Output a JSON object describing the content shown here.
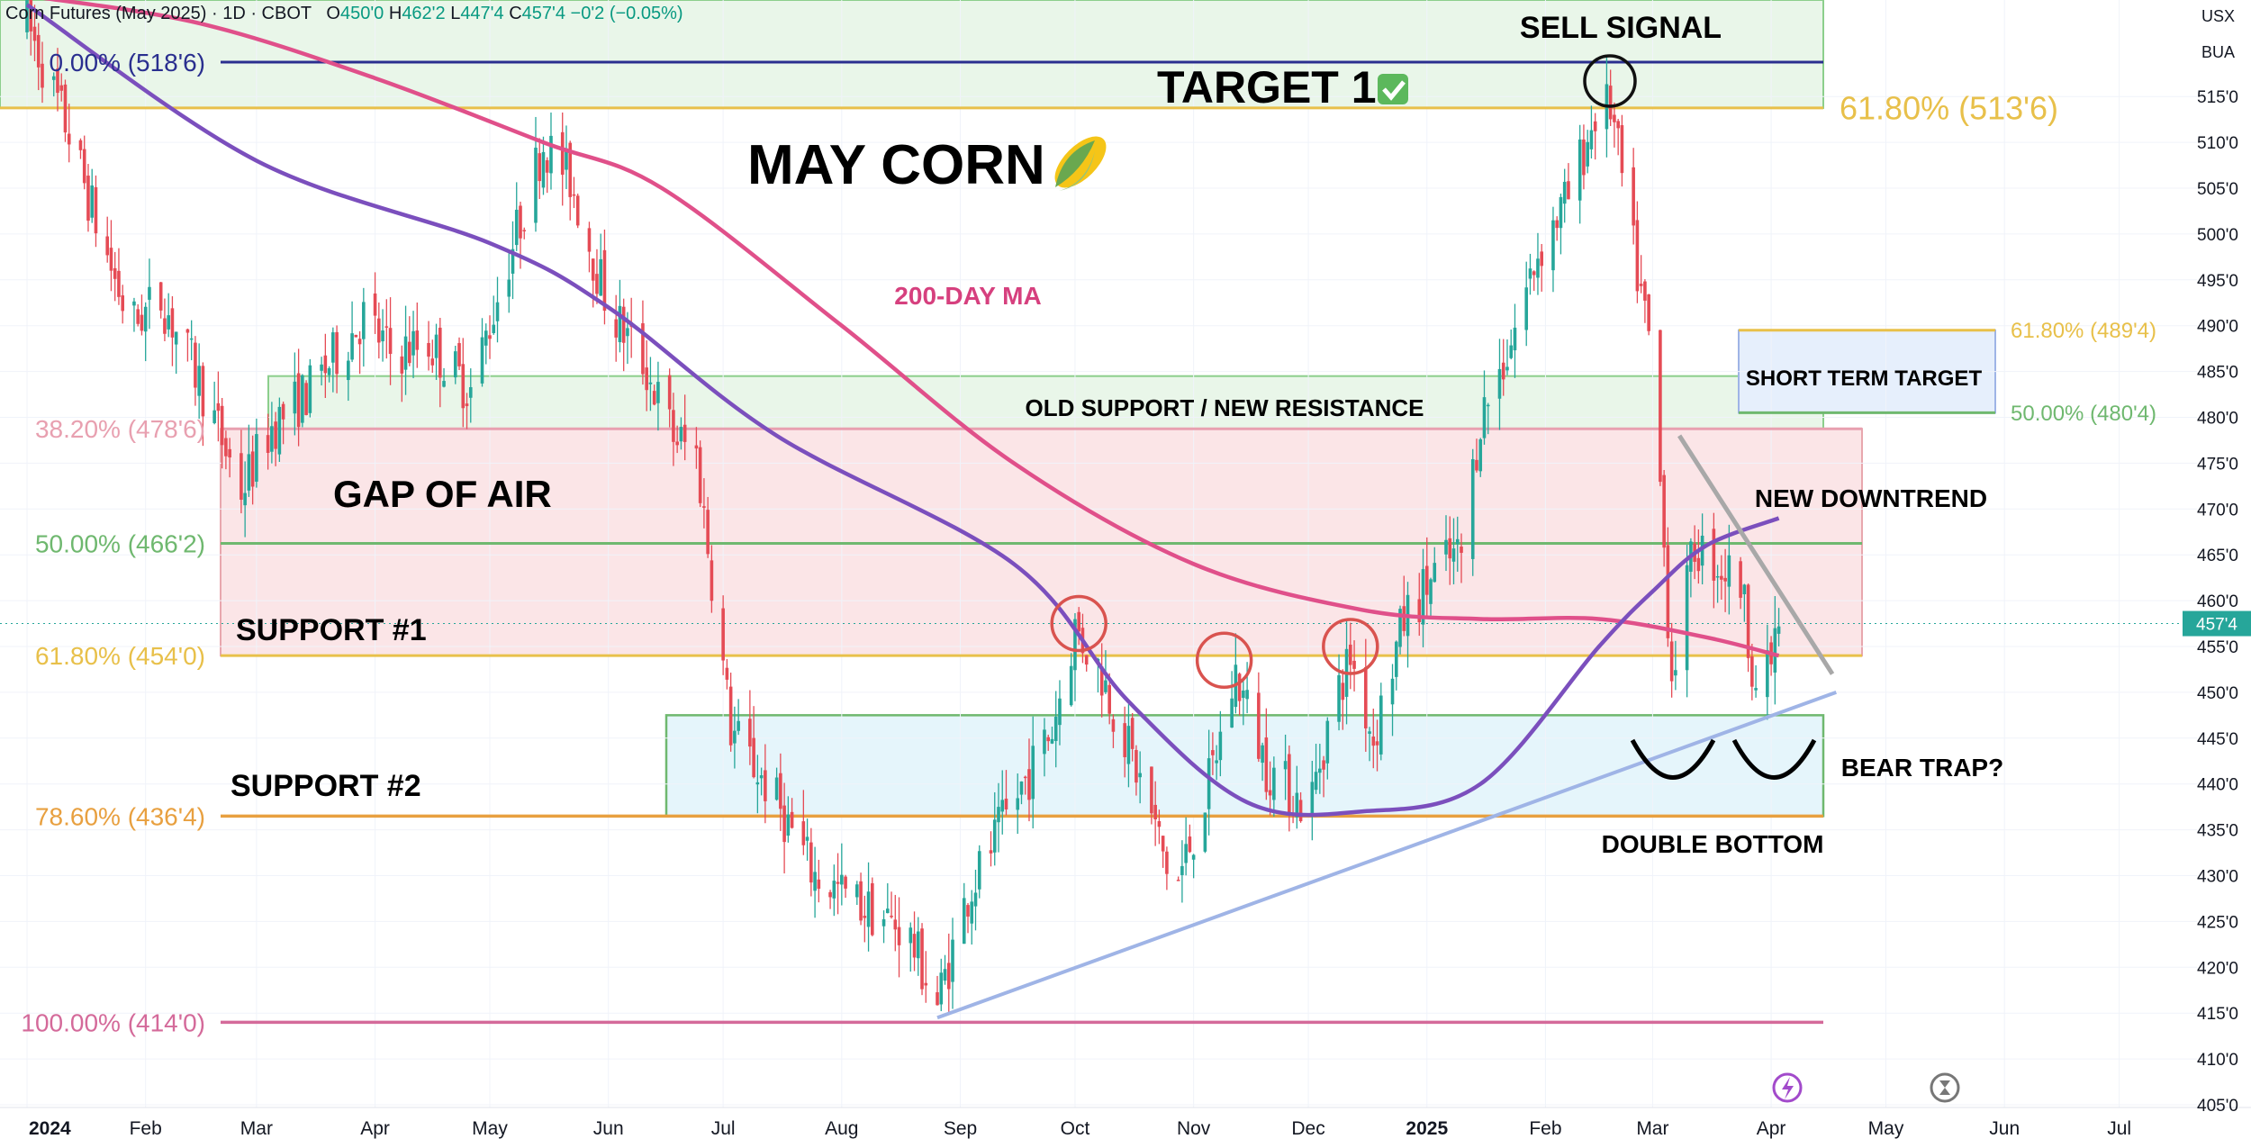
{
  "header": {
    "symbol": "Corn Futures (May 2025) · 1D · CBOT",
    "open_label": "O",
    "open": "450'0",
    "high_label": "H",
    "high": "462'2",
    "low_label": "L",
    "low": "447'4",
    "close_label": "C",
    "close": "457'4",
    "change": "−0'2 (−0.05%)"
  },
  "corner": {
    "currency": "USX",
    "unit": "BUA"
  },
  "colors": {
    "up": "#26a69a",
    "down": "#e54b55",
    "ma200": "#e0508a",
    "ma_short": "#7b4fbd",
    "trendline": "#9fb4e6",
    "price_badge": "#26a69a"
  },
  "annotations": {
    "title": "MAY CORN",
    "title_icon": "corn-emoji",
    "target1": "TARGET 1",
    "target1_icon": "check-mark-icon",
    "sell_signal": "SELL SIGNAL",
    "ma_label": "200-DAY MA",
    "old_support": "OLD SUPPORT / NEW RESISTANCE",
    "gap": "GAP OF AIR",
    "support1": "SUPPORT #1",
    "support2": "SUPPORT #2",
    "short_term_target": "SHORT TERM TARGET",
    "new_downtrend": "NEW DOWNTREND",
    "bear_trap": "BEAR TRAP?",
    "double_bottom": "DOUBLE BOTTOM"
  },
  "fib_levels_left": [
    {
      "label": "0.00% (518'6)",
      "price": 518.75,
      "color": "#2a2f8f"
    },
    {
      "label": "38.20% (478'6)",
      "price": 478.75,
      "color": "#e8a0b0"
    },
    {
      "label": "50.00% (466'2)",
      "price": 466.25,
      "color": "#6fb86f"
    },
    {
      "label": "61.80% (454'0)",
      "price": 454.0,
      "color": "#e8c04a"
    },
    {
      "label": "78.60% (436'4)",
      "price": 436.5,
      "color": "#e8a040"
    },
    {
      "label": "100.00% (414'0)",
      "price": 414.0,
      "color": "#d46a9a"
    }
  ],
  "fib_levels_right": [
    {
      "label": "61.80% (513'6)",
      "price": 513.75,
      "color": "#e8c04a"
    },
    {
      "label": "61.80% (489'4)",
      "price": 489.5,
      "color": "#e8c04a"
    },
    {
      "label": "50.00% (480'4)",
      "price": 480.5,
      "color": "#6fb86f"
    }
  ],
  "last_price_badge": "457'4",
  "icons": [
    "lightning-icon",
    "timer-icon"
  ],
  "chart_data": {
    "type": "candlestick",
    "title": "MAY CORN",
    "x_axis_labels": [
      "2024",
      "Feb",
      "Mar",
      "Apr",
      "May",
      "Jun",
      "Jul",
      "Aug",
      "Sep",
      "Oct",
      "Nov",
      "Dec",
      "2025",
      "Feb",
      "Mar",
      "Apr",
      "May",
      "Jun",
      "Jul"
    ],
    "y_axis_labels": [
      "405'0",
      "410'0",
      "415'0",
      "420'0",
      "425'0",
      "430'0",
      "435'0",
      "440'0",
      "445'0",
      "450'0",
      "455'0",
      "460'0",
      "465'0",
      "470'0",
      "475'0",
      "480'0",
      "485'0",
      "490'0",
      "495'0",
      "500'0",
      "505'0",
      "510'0",
      "515'0"
    ],
    "y_ticks": [
      405,
      410,
      415,
      420,
      425,
      430,
      435,
      440,
      445,
      450,
      455,
      460,
      465,
      470,
      475,
      480,
      485,
      490,
      495,
      500,
      505,
      510,
      515
    ],
    "ylim": [
      405,
      526
    ],
    "x_range": [
      "2024-01-01",
      "2025-07-31"
    ],
    "x_label_dates": [
      "2024-01-01",
      "2024-02-01",
      "2024-03-01",
      "2024-04-01",
      "2024-05-01",
      "2024-06-01",
      "2024-07-01",
      "2024-08-01",
      "2024-09-01",
      "2024-10-01",
      "2024-11-01",
      "2024-12-01",
      "2025-01-01",
      "2025-02-01",
      "2025-03-01",
      "2025-04-01",
      "2025-05-01",
      "2025-06-01",
      "2025-07-01"
    ],
    "last_price": 457.5,
    "price_keypoints": [
      [
        "2024-01-01",
        523
      ],
      [
        "2024-01-12",
        511
      ],
      [
        "2024-01-20",
        500
      ],
      [
        "2024-01-28",
        490
      ],
      [
        "2024-02-05",
        493
      ],
      [
        "2024-02-15",
        484
      ],
      [
        "2024-02-26",
        472
      ],
      [
        "2024-03-05",
        479
      ],
      [
        "2024-03-15",
        483
      ],
      [
        "2024-03-29",
        491
      ],
      [
        "2024-04-05",
        487
      ],
      [
        "2024-04-15",
        488
      ],
      [
        "2024-04-26",
        483
      ],
      [
        "2024-05-05",
        496
      ],
      [
        "2024-05-15",
        510
      ],
      [
        "2024-05-22",
        506
      ],
      [
        "2024-06-01",
        492
      ],
      [
        "2024-06-10",
        486
      ],
      [
        "2024-06-18",
        478
      ],
      [
        "2024-06-24",
        476
      ],
      [
        "2024-07-03",
        446
      ],
      [
        "2024-07-15",
        438
      ],
      [
        "2024-07-25",
        430
      ],
      [
        "2024-08-05",
        427
      ],
      [
        "2024-08-18",
        424
      ],
      [
        "2024-08-26",
        416
      ],
      [
        "2024-09-03",
        428
      ],
      [
        "2024-09-15",
        438
      ],
      [
        "2024-09-25",
        446
      ],
      [
        "2024-10-01",
        457
      ],
      [
        "2024-10-08",
        452
      ],
      [
        "2024-10-20",
        438
      ],
      [
        "2024-10-27",
        428
      ],
      [
        "2024-11-05",
        440
      ],
      [
        "2024-11-12",
        452
      ],
      [
        "2024-11-20",
        442
      ],
      [
        "2024-12-01",
        437
      ],
      [
        "2024-12-07",
        448
      ],
      [
        "2024-12-12",
        454
      ],
      [
        "2024-12-18",
        445
      ],
      [
        "2024-12-26",
        458
      ],
      [
        "2025-01-05",
        464
      ],
      [
        "2025-01-10",
        465
      ],
      [
        "2025-01-15",
        480
      ],
      [
        "2025-01-22",
        487
      ],
      [
        "2025-01-30",
        498
      ],
      [
        "2025-02-07",
        504
      ],
      [
        "2025-02-14",
        513
      ],
      [
        "2025-02-18",
        514
      ],
      [
        "2025-02-24",
        498
      ],
      [
        "2025-03-01",
        486
      ],
      [
        "2025-03-06",
        452
      ],
      [
        "2025-03-12",
        466
      ],
      [
        "2025-03-18",
        464
      ],
      [
        "2025-03-24",
        462
      ],
      [
        "2025-03-29",
        448
      ],
      [
        "2025-04-03",
        457.5
      ]
    ],
    "series": [
      {
        "name": "200-DAY MA",
        "points": [
          [
            "2024-01-01",
            526
          ],
          [
            "2024-02-15",
            523
          ],
          [
            "2024-04-01",
            517
          ],
          [
            "2024-05-15",
            510
          ],
          [
            "2024-06-15",
            505
          ],
          [
            "2024-08-01",
            490
          ],
          [
            "2024-09-15",
            475
          ],
          [
            "2024-11-01",
            464
          ],
          [
            "2024-12-15",
            459
          ],
          [
            "2025-01-15",
            458
          ],
          [
            "2025-02-15",
            458
          ],
          [
            "2025-03-15",
            456
          ],
          [
            "2025-04-03",
            454
          ]
        ]
      },
      {
        "name": "",
        "points": [
          [
            "2024-01-01",
            525
          ],
          [
            "2024-03-01",
            508
          ],
          [
            "2024-05-01",
            499
          ],
          [
            "2024-06-01",
            492
          ],
          [
            "2024-07-15",
            478
          ],
          [
            "2024-09-15",
            464
          ],
          [
            "2024-10-15",
            449
          ],
          [
            "2024-11-15",
            438
          ],
          [
            "2024-12-15",
            437
          ],
          [
            "2025-01-15",
            440
          ],
          [
            "2025-02-15",
            455
          ],
          [
            "2025-03-01",
            461
          ],
          [
            "2025-03-15",
            466
          ],
          [
            "2025-04-03",
            469
          ]
        ]
      }
    ],
    "trendlines": [
      {
        "name": "uptrend",
        "from": [
          "2024-08-26",
          414.5
        ],
        "to": [
          "2025-04-18",
          450
        ]
      },
      {
        "name": "new-downtrend",
        "from": [
          "2025-03-08",
          478
        ],
        "to": [
          "2025-04-17",
          452
        ]
      }
    ]
  }
}
